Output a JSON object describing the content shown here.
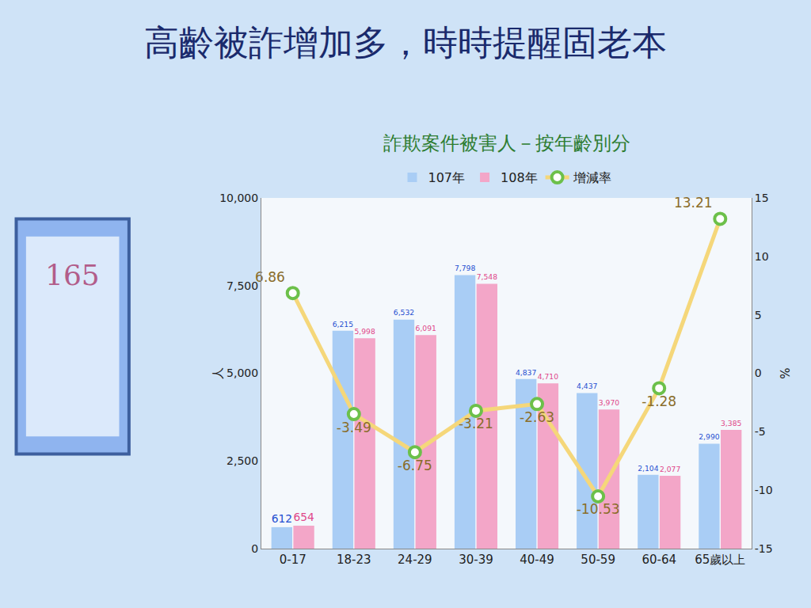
{
  "chart_data": {
    "type": "bar",
    "title": "高齡被詐增加多，時時提醒固老本",
    "subtitle": "詐欺案件被害人－按年齡別分",
    "y_label": "人",
    "y2_label": "%",
    "categories": [
      "0-17",
      "18-23",
      "24-29",
      "30-39",
      "40-49",
      "50-59",
      "60-64",
      "65歲以上"
    ],
    "series": [
      {
        "name": "107年",
        "type": "bar",
        "color": "#a9cdf5",
        "values": [
          612,
          6215,
          6532,
          7798,
          4837,
          4437,
          2104,
          2990
        ],
        "value_labels": [
          "612",
          "6,215",
          "6,532",
          "7,798",
          "4,837",
          "4,437",
          "2,104",
          "2,990"
        ]
      },
      {
        "name": "108年",
        "type": "bar",
        "color": "#f3a6c8",
        "values": [
          654,
          5998,
          6091,
          7548,
          4710,
          3970,
          2077,
          3385
        ],
        "value_labels": [
          "654",
          "5,998",
          "6,091",
          "7,548",
          "4,710",
          "3,970",
          "2,077",
          "3,385"
        ]
      },
      {
        "name": "增減率",
        "type": "line",
        "axis": "y2",
        "color": "#f5d77a",
        "marker": "circle",
        "values": [
          6.86,
          -3.49,
          -6.75,
          -3.21,
          -2.63,
          -10.53,
          -1.28,
          13.21
        ]
      }
    ],
    "ylim": [
      0,
      10000
    ],
    "yticks": [
      0,
      {
        "value": 2500,
        "label": "2,500"
      },
      {
        "value": 5000,
        "label": "5,000"
      },
      {
        "value": 7500,
        "label": "7,500"
      },
      {
        "value": 10000,
        "label": "10,000"
      }
    ],
    "y2lim": [
      -15,
      15
    ],
    "y2ticks": [
      -15,
      -10,
      -5,
      0,
      5,
      10,
      15
    ],
    "grid": false,
    "legend": "top",
    "data_labels": true,
    "annotations": [
      "165"
    ]
  }
}
